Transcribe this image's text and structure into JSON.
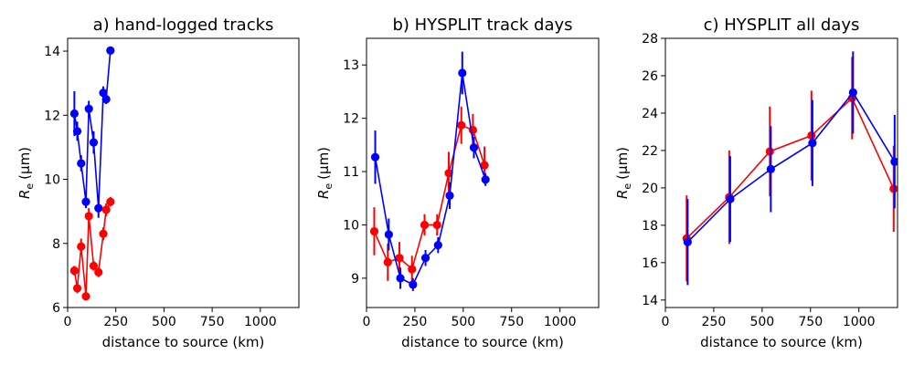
{
  "chart_data": [
    {
      "type": "line",
      "title": "a) hand-logged tracks",
      "xlabel": "distance to source (km)",
      "ylabel": {
        "main": "R",
        "sub": "e",
        "unit": "(μm)"
      },
      "xlim": [
        0,
        1200
      ],
      "ylim": [
        6,
        14.4
      ],
      "xticks": [
        0,
        250,
        500,
        750,
        1000
      ],
      "yticks": [
        6,
        8,
        10,
        12,
        14
      ],
      "series": [
        {
          "name": "blue",
          "color": "#0000ff",
          "x": [
            35,
            50,
            70,
            95,
            110,
            135,
            160,
            185,
            200,
            222
          ],
          "y": [
            12.05,
            11.5,
            10.5,
            9.3,
            12.2,
            11.15,
            9.1,
            12.7,
            12.5,
            14.02
          ],
          "err": [
            0.7,
            0.3,
            0.25,
            0.2,
            0.25,
            0.35,
            0.3,
            0.2,
            0.15,
            0.12
          ]
        },
        {
          "name": "red",
          "color": "#ff0000",
          "x": [
            35,
            50,
            70,
            95,
            110,
            135,
            160,
            185,
            200,
            222
          ],
          "y": [
            7.15,
            6.6,
            7.9,
            6.35,
            8.85,
            7.3,
            7.1,
            8.3,
            9.05,
            9.3
          ],
          "err": [
            0.15,
            0.15,
            0.25,
            0.1,
            0.25,
            0.15,
            0.15,
            0.2,
            0.2,
            0.15
          ]
        }
      ]
    },
    {
      "type": "line",
      "title": "b) HYSPLIT track days",
      "xlabel": "distance to source (km)",
      "ylabel": {
        "main": "R",
        "sub": "e",
        "unit": "(μm)"
      },
      "xlim": [
        0,
        1200
      ],
      "ylim": [
        8.45,
        13.5
      ],
      "xticks": [
        0,
        250,
        500,
        750,
        1000
      ],
      "yticks": [
        9,
        10,
        11,
        12,
        13
      ],
      "series": [
        {
          "name": "red",
          "color": "#ff0000",
          "x": [
            40,
            110,
            170,
            235,
            300,
            365,
            425,
            490,
            550,
            610
          ],
          "y": [
            9.88,
            9.3,
            9.38,
            9.17,
            10.0,
            10.0,
            10.97,
            11.87,
            11.78,
            11.12
          ],
          "err": [
            0.45,
            0.35,
            0.3,
            0.25,
            0.2,
            0.2,
            0.4,
            0.35,
            0.3,
            0.35
          ]
        },
        {
          "name": "blue",
          "color": "#0000ff",
          "x": [
            45,
            115,
            175,
            240,
            305,
            370,
            430,
            495,
            555,
            615
          ],
          "y": [
            11.27,
            9.82,
            9.0,
            8.88,
            9.38,
            9.62,
            10.55,
            12.85,
            11.45,
            10.85
          ],
          "err": [
            0.5,
            0.3,
            0.2,
            0.12,
            0.15,
            0.15,
            0.25,
            0.4,
            0.2,
            0.12
          ]
        }
      ]
    },
    {
      "type": "line",
      "title": "c) HYSPLIT all days",
      "xlabel": "distance to source (km)",
      "ylabel": {
        "main": "R",
        "sub": "e",
        "unit": "(μm)"
      },
      "xlim": [
        0,
        1200
      ],
      "ylim": [
        13.6,
        28
      ],
      "xticks": [
        0,
        250,
        500,
        750,
        1000
      ],
      "yticks": [
        14,
        16,
        18,
        20,
        22,
        24,
        26,
        28
      ],
      "series": [
        {
          "name": "red",
          "color": "#ff0000",
          "x": [
            110,
            330,
            540,
            755,
            965,
            1180
          ],
          "y": [
            17.3,
            19.5,
            21.95,
            22.8,
            24.8,
            19.95
          ],
          "err": [
            2.3,
            2.5,
            2.4,
            2.4,
            2.2,
            2.3
          ]
        },
        {
          "name": "blue",
          "color": "#0000ff",
          "x": [
            115,
            335,
            545,
            760,
            970,
            1185
          ],
          "y": [
            17.1,
            19.4,
            21.0,
            22.4,
            25.1,
            21.4
          ],
          "err": [
            2.3,
            2.3,
            2.3,
            2.3,
            2.2,
            2.5
          ]
        }
      ]
    }
  ]
}
